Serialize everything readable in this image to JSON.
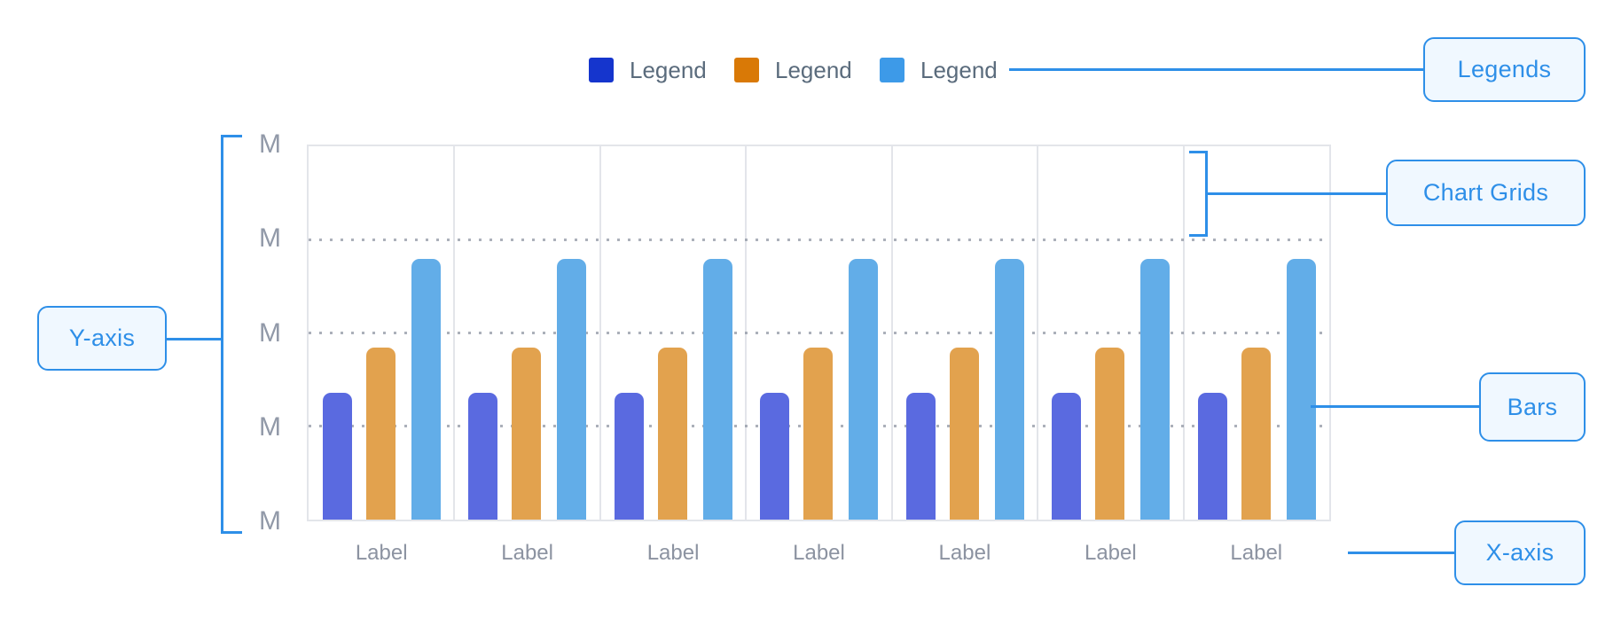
{
  "chart_data": {
    "type": "bar",
    "title": "",
    "categories": [
      "Label",
      "Label",
      "Label",
      "Label",
      "Label",
      "Label",
      "Label"
    ],
    "series": [
      {
        "name": "Legend",
        "legend_color": "#1535CD",
        "bar_color": "#5A6AE0",
        "values": [
          1.36,
          1.36,
          1.36,
          1.36,
          1.36,
          1.36,
          1.36
        ]
      },
      {
        "name": "Legend",
        "legend_color": "#D97906",
        "bar_color": "#E2A24E",
        "values": [
          1.84,
          1.84,
          1.84,
          1.84,
          1.84,
          1.84,
          1.84
        ]
      },
      {
        "name": "Legend",
        "legend_color": "#3D9AE8",
        "bar_color": "#62ADE8",
        "values": [
          2.79,
          2.79,
          2.79,
          2.79,
          2.79,
          2.79,
          2.79
        ]
      }
    ],
    "xlabel": "",
    "ylabel": "",
    "y_tick_labels": [
      "M",
      "M",
      "M",
      "M",
      "M"
    ],
    "ylim": [
      0,
      4
    ],
    "grid": "3 horizontal dotted gridlines; solid light-gray vertical dividers between the 7 category panels; solid light-gray outer border",
    "legend_position": "top-center"
  },
  "annotations": {
    "legends": {
      "label": "Legends"
    },
    "chart_grids": {
      "label": "Chart Grids"
    },
    "y_axis": {
      "label": "Y-axis"
    },
    "bars": {
      "label": "Bars"
    },
    "x_axis": {
      "label": "X-axis"
    }
  },
  "colors": {
    "callout_accent": "#2E8FE8",
    "callout_fill": "#F0F8FF",
    "grid_line": "#E3E5EA",
    "dotted_grid_line": "#8F96A3",
    "axis_text": "#9199A8",
    "x_label_text": "#8C93A1",
    "legend_text": "#5A6B7C",
    "background": "#FFFFFF"
  }
}
